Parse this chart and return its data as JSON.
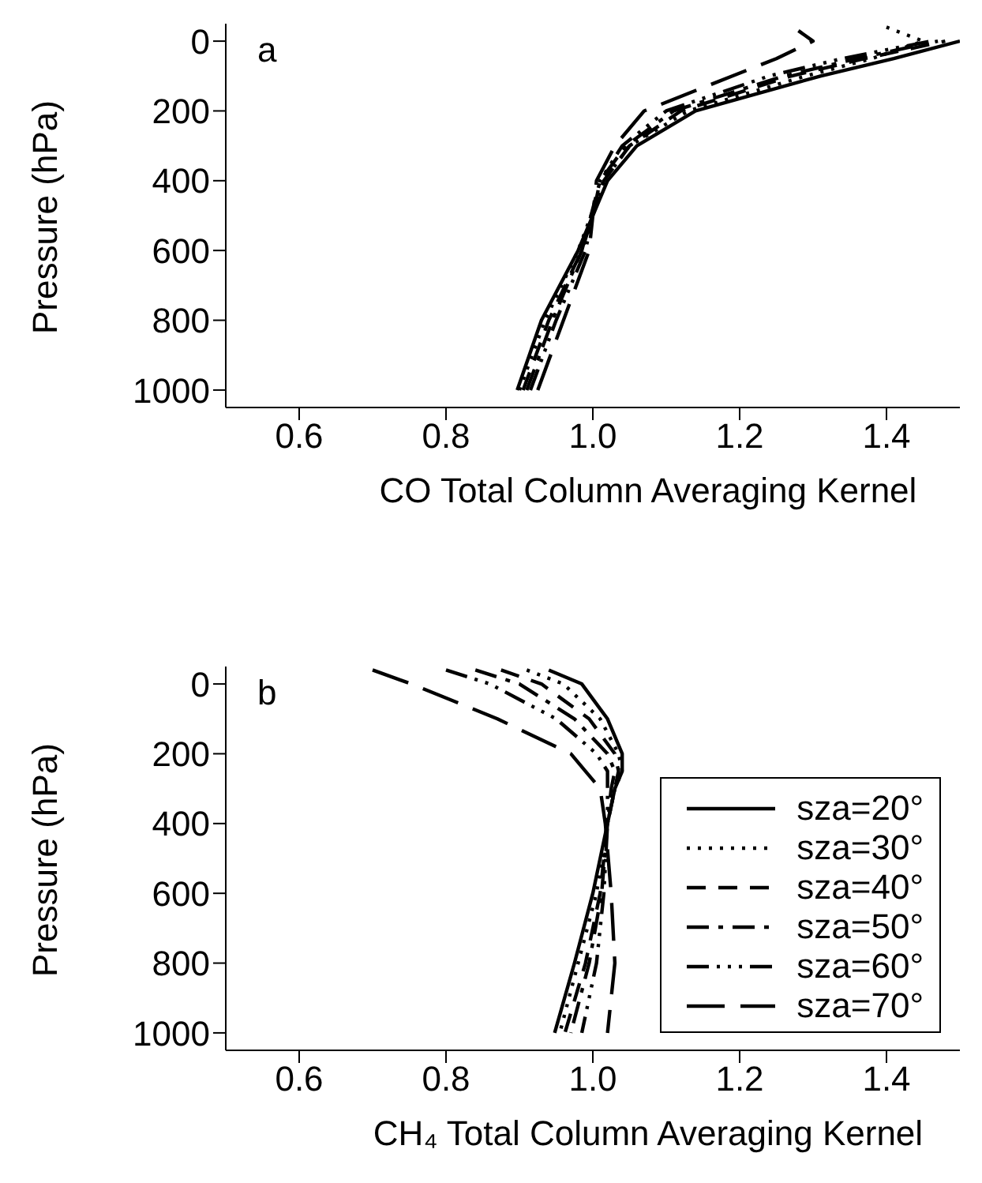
{
  "chart_data": [
    {
      "type": "line",
      "xlabel": "CO Total Column Averaging Kernel",
      "ylabel": "Pressure (hPa)",
      "annotations": [
        "a"
      ],
      "xlim": [
        0.5,
        1.5
      ],
      "xticks": [
        0.6,
        0.8,
        {
          "value": 1,
          "label": "1.0"
        },
        1.2,
        1.4
      ],
      "ylim": [
        1050,
        -50
      ],
      "yticks": [
        0,
        200,
        400,
        600,
        800,
        1000
      ],
      "legend": false,
      "series": [
        {
          "color": "#000000",
          "line_style": "solid",
          "x": [
            0.897,
            0.93,
            0.98,
            1.02,
            1.06,
            1.14,
            1.31,
            1.41,
            1.5
          ],
          "values": [
            1000,
            800,
            600,
            400,
            300,
            200,
            100,
            50,
            0
          ]
        },
        {
          "color": "#000000",
          "line_style": "dotted",
          "x": [
            0.9,
            0.935,
            0.98,
            1.015,
            1.05,
            1.13,
            1.29,
            1.38,
            1.45,
            1.4
          ],
          "values": [
            1000,
            800,
            600,
            400,
            300,
            200,
            100,
            50,
            0,
            -40
          ]
        },
        {
          "color": "#000000",
          "line_style": "dashed",
          "x": [
            0.905,
            0.94,
            0.985,
            1.015,
            1.05,
            1.12,
            1.27,
            1.37,
            1.48
          ],
          "values": [
            1000,
            800,
            600,
            400,
            300,
            200,
            100,
            50,
            0
          ]
        },
        {
          "color": "#000000",
          "line_style": "dashdot",
          "x": [
            0.91,
            0.945,
            0.985,
            1.01,
            1.045,
            1.11,
            1.26,
            1.36,
            1.47
          ],
          "values": [
            1000,
            800,
            600,
            400,
            300,
            200,
            100,
            50,
            0
          ]
        },
        {
          "color": "#000000",
          "line_style": "dashdotdot",
          "x": [
            0.915,
            0.95,
            0.99,
            1.01,
            1.04,
            1.1,
            1.24,
            1.34,
            1.46
          ],
          "values": [
            1000,
            800,
            600,
            400,
            300,
            200,
            100,
            50,
            0
          ]
        },
        {
          "color": "#000000",
          "line_style": "longdash",
          "x": [
            0.925,
            0.96,
            0.995,
            1.005,
            1.03,
            1.07,
            1.19,
            1.25,
            1.3,
            1.28
          ],
          "values": [
            1000,
            800,
            600,
            400,
            300,
            200,
            100,
            50,
            0,
            -30
          ]
        }
      ]
    },
    {
      "type": "line",
      "xlabel": "CH₄ Total Column Averaging Kernel",
      "ylabel": "Pressure (hPa)",
      "annotations": [
        "b"
      ],
      "xlim": [
        0.5,
        1.5
      ],
      "xticks": [
        0.6,
        0.8,
        {
          "value": 1,
          "label": "1.0"
        },
        1.2,
        1.4
      ],
      "ylim": [
        1050,
        -50
      ],
      "yticks": [
        0,
        200,
        400,
        600,
        800,
        1000
      ],
      "legend": "right",
      "series": [
        {
          "name": "sza=20°",
          "color": "#000000",
          "line_style": "solid",
          "x": [
            0.94,
            0.985,
            1.02,
            1.04,
            1.04,
            1.03,
            1.02,
            1.0,
            0.975,
            0.948
          ],
          "values": [
            -40,
            0,
            100,
            200,
            250,
            300,
            400,
            600,
            800,
            1000
          ]
        },
        {
          "name": "sza=30°",
          "color": "#000000",
          "line_style": "dotted",
          "x": [
            0.91,
            0.96,
            1.01,
            1.035,
            1.04,
            1.03,
            1.02,
            1.005,
            0.98,
            0.955
          ],
          "values": [
            -40,
            0,
            100,
            200,
            250,
            300,
            400,
            600,
            800,
            1000
          ]
        },
        {
          "name": "sza=40°",
          "color": "#000000",
          "line_style": "dashed",
          "x": [
            0.875,
            0.93,
            0.995,
            1.03,
            1.035,
            1.03,
            1.02,
            1.01,
            0.99,
            0.962
          ],
          "values": [
            -40,
            0,
            100,
            200,
            250,
            300,
            400,
            600,
            800,
            1000
          ]
        },
        {
          "name": "sza=50°",
          "color": "#000000",
          "line_style": "dashdot",
          "x": [
            0.84,
            0.9,
            0.975,
            1.02,
            1.03,
            1.025,
            1.02,
            1.012,
            0.995,
            0.97
          ],
          "values": [
            -40,
            0,
            100,
            200,
            250,
            300,
            400,
            600,
            800,
            1000
          ]
        },
        {
          "name": "sza=60°",
          "color": "#000000",
          "line_style": "dashdotdot",
          "x": [
            0.8,
            0.86,
            0.95,
            1.005,
            1.02,
            1.02,
            1.02,
            1.015,
            1.005,
            0.985
          ],
          "values": [
            -40,
            0,
            100,
            200,
            250,
            300,
            400,
            600,
            800,
            1000
          ]
        },
        {
          "name": "sza=70°",
          "color": "#000000",
          "line_style": "longdash",
          "x": [
            0.7,
            0.753,
            0.87,
            0.97,
            0.99,
            1.01,
            1.017,
            1.025,
            1.03,
            1.02
          ],
          "values": [
            -40,
            0,
            100,
            200,
            250,
            300,
            400,
            600,
            800,
            1000
          ]
        }
      ]
    }
  ]
}
